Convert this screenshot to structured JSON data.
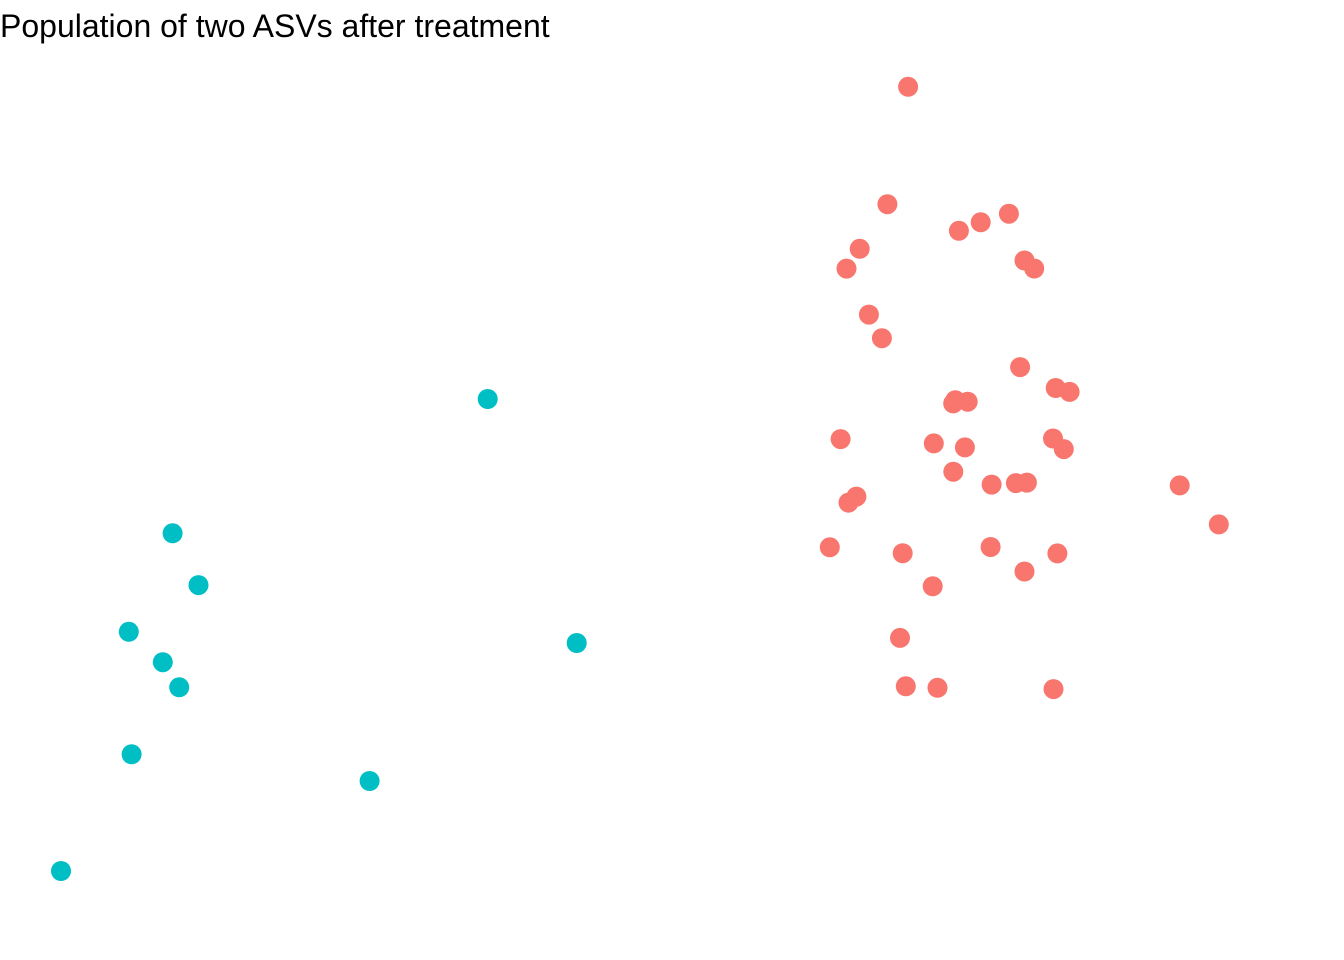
{
  "chart_data": {
    "type": "scatter",
    "title": "Population of two ASVs after treatment",
    "xlabel": "",
    "ylabel": "",
    "grid": false,
    "legend": "none",
    "axes_visible": false,
    "xlim": [
      0,
      1
    ],
    "ylim": [
      0,
      1
    ],
    "series": [
      {
        "color": "#F8766D",
        "points": [
          [
            0.6932,
            0.9802
          ],
          [
            0.6763,
            0.8417
          ],
          [
            0.6536,
            0.7892
          ],
          [
            0.6428,
            0.7658
          ],
          [
            0.7348,
            0.8104
          ],
          [
            0.7526,
            0.8204
          ],
          [
            0.7757,
            0.8305
          ],
          [
            0.7885,
            0.7754
          ],
          [
            0.7964,
            0.7659
          ],
          [
            0.6611,
            0.7116
          ],
          [
            0.6718,
            0.6837
          ],
          [
            0.7849,
            0.6497
          ],
          [
            0.814,
            0.625
          ],
          [
            0.8254,
            0.6204
          ],
          [
            0.7318,
            0.6106
          ],
          [
            0.7301,
            0.6068
          ],
          [
            0.742,
            0.6089
          ],
          [
            0.638,
            0.5647
          ],
          [
            0.7142,
            0.5597
          ],
          [
            0.7397,
            0.555
          ],
          [
            0.8118,
            0.5655
          ],
          [
            0.8206,
            0.553
          ],
          [
            0.7302,
            0.5263
          ],
          [
            0.7615,
            0.5111
          ],
          [
            0.7814,
            0.5129
          ],
          [
            0.7904,
            0.5134
          ],
          [
            0.6509,
            0.4969
          ],
          [
            0.6444,
            0.4899
          ],
          [
            0.9155,
            0.5101
          ],
          [
            0.9475,
            0.4642
          ],
          [
            0.6291,
            0.4371
          ],
          [
            0.6888,
            0.4302
          ],
          [
            0.7607,
            0.4375
          ],
          [
            0.7885,
            0.4086
          ],
          [
            0.8154,
            0.4299
          ],
          [
            0.7133,
            0.3912
          ],
          [
            0.6866,
            0.3303
          ],
          [
            0.8122,
            0.2699
          ],
          [
            0.6913,
            0.2732
          ],
          [
            0.7173,
            0.2715
          ]
        ]
      },
      {
        "color": "#00BFC4",
        "points": [
          [
            0.3492,
            0.612
          ],
          [
            0.0913,
            0.4536
          ],
          [
            0.1125,
            0.3926
          ],
          [
            0.422,
            0.3243
          ],
          [
            0.0555,
            0.3375
          ],
          [
            0.0833,
            0.3017
          ],
          [
            0.0967,
            0.2721
          ],
          [
            0.2525,
            0.1616
          ],
          [
            0.0578,
            0.1931
          ],
          [
            0.0,
            0.0554
          ]
        ]
      }
    ]
  }
}
